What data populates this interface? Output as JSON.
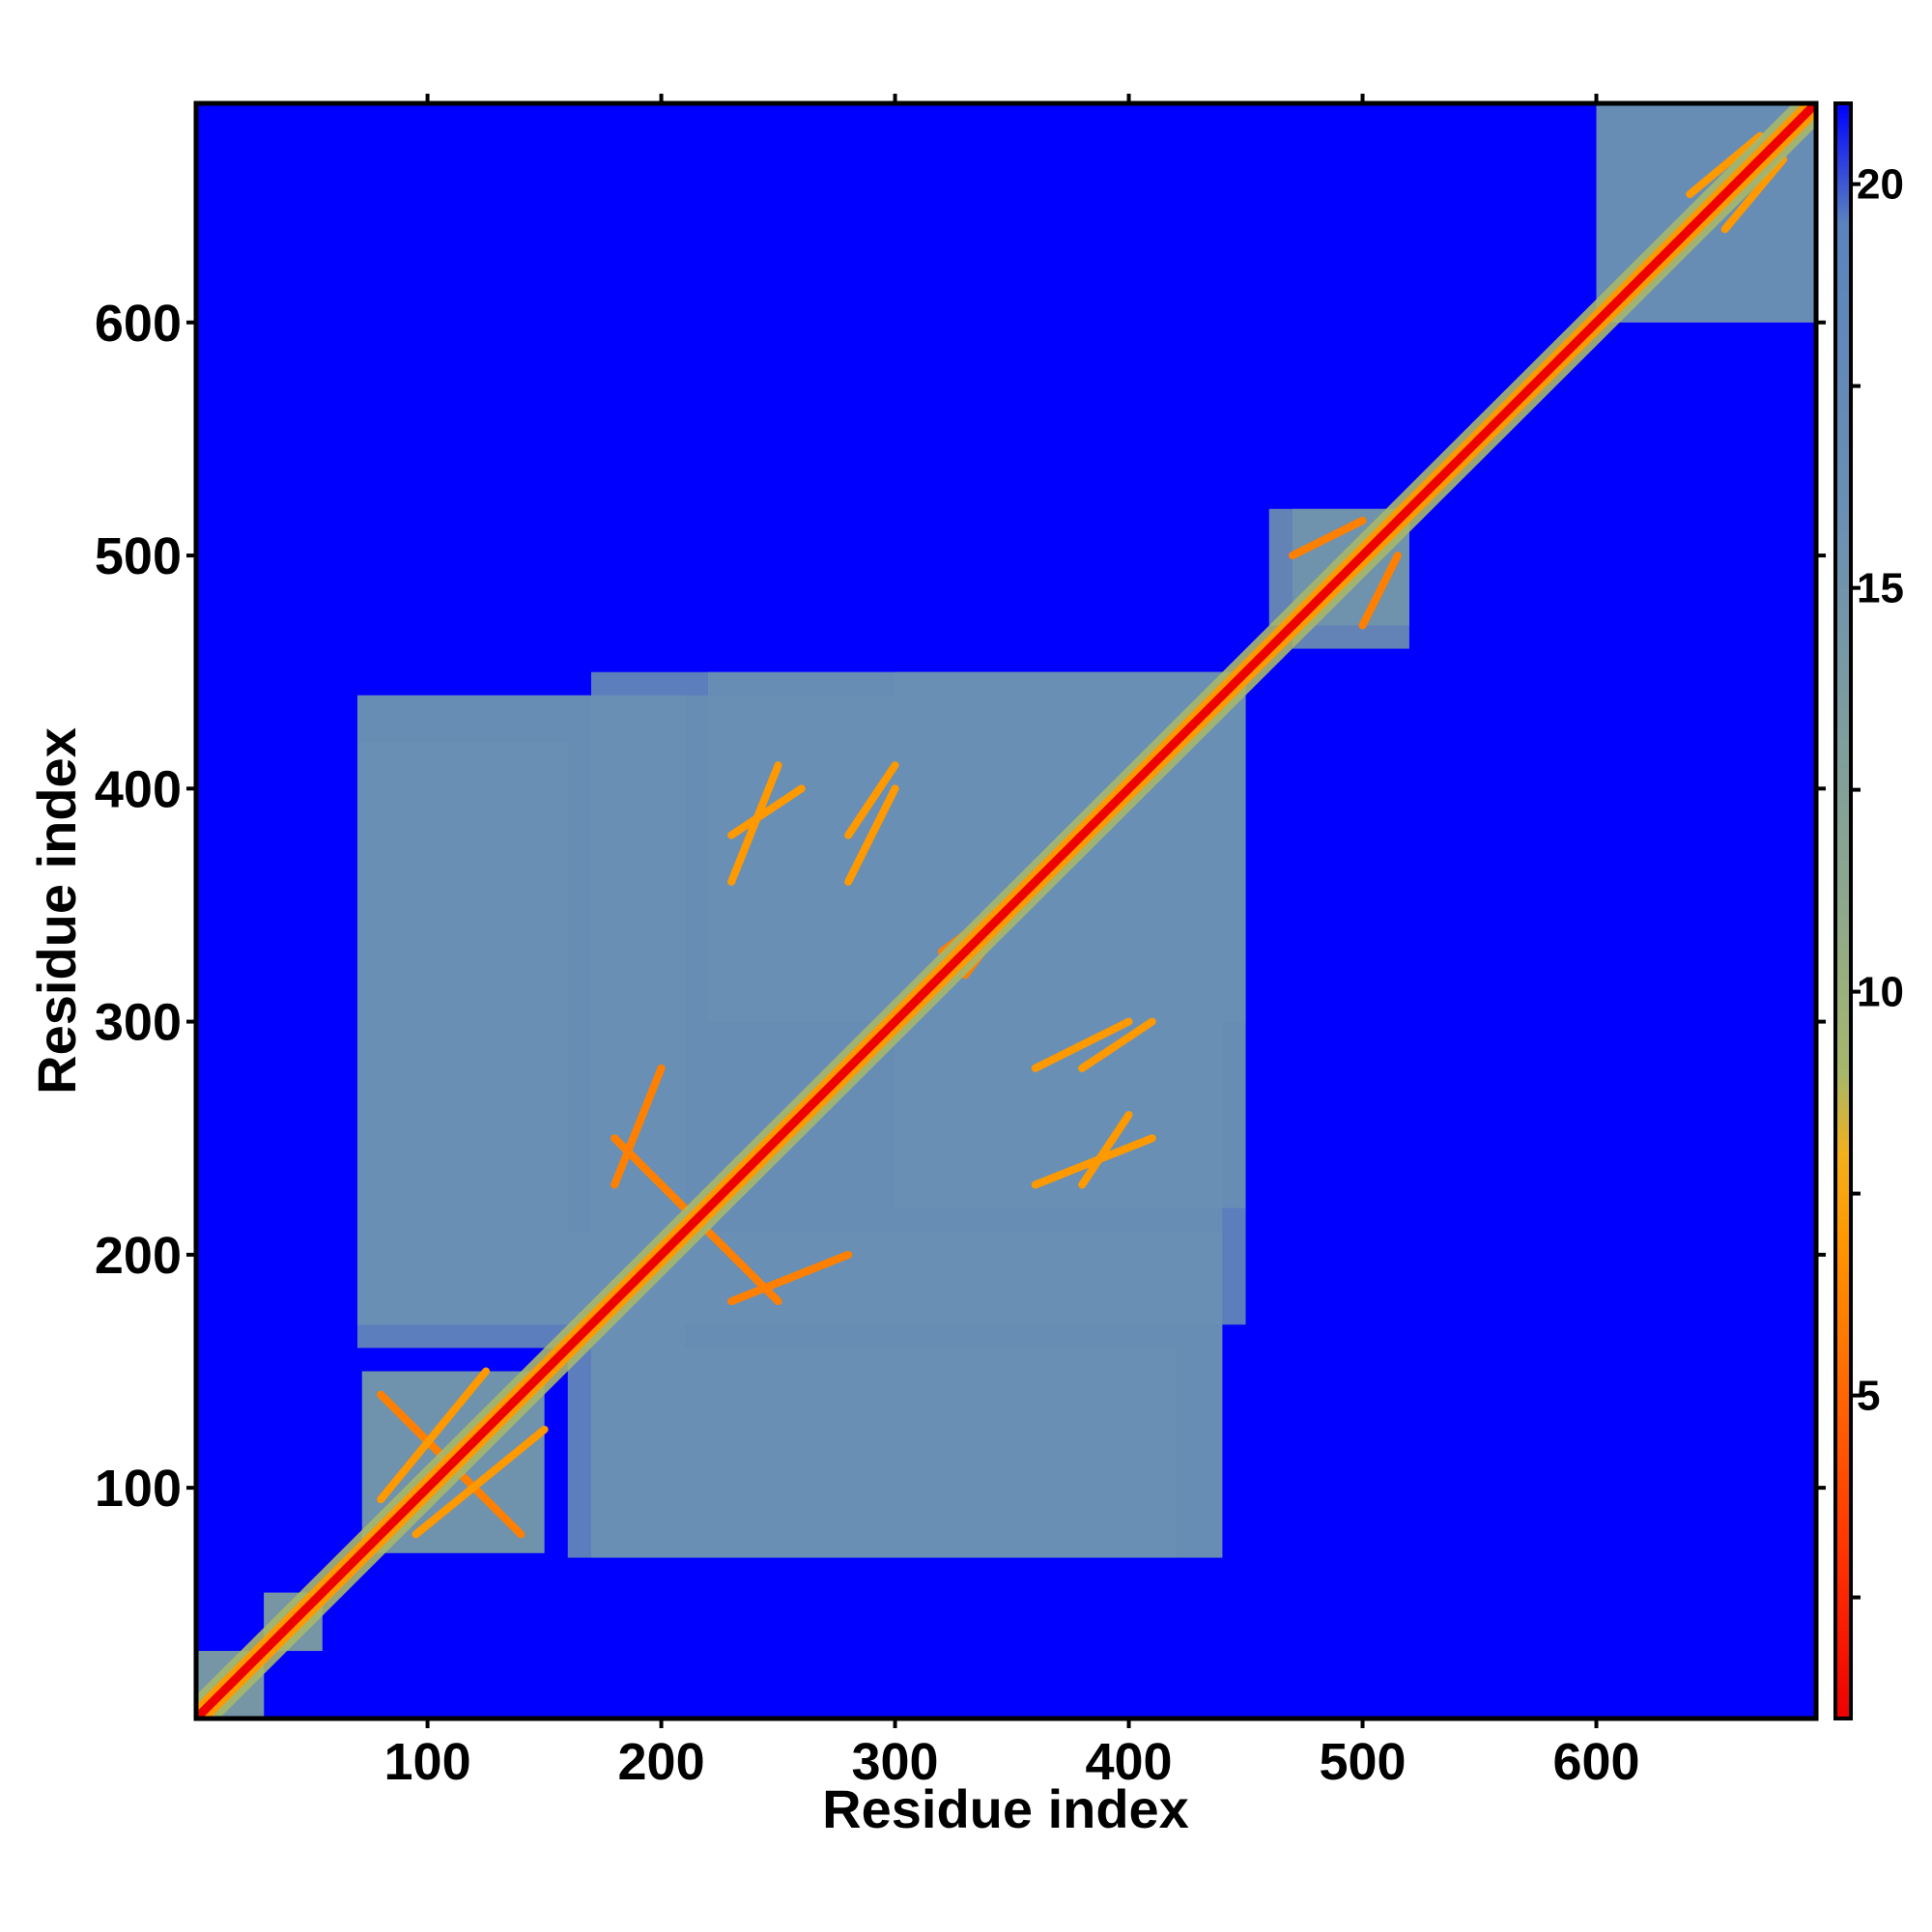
{
  "chart_data": {
    "type": "heatmap",
    "title": "",
    "xlabel": "Residue index",
    "ylabel": "Residue index",
    "xlim": [
      1,
      694
    ],
    "ylim": [
      1,
      694
    ],
    "x_ticks": [
      100,
      200,
      300,
      400,
      500,
      600
    ],
    "y_ticks": [
      100,
      200,
      300,
      400,
      500,
      600
    ],
    "colorbar": {
      "ticks": [
        5,
        10,
        15,
        20
      ],
      "range": [
        1,
        21
      ],
      "stops": [
        {
          "v": 1.0,
          "color": "#ee0000"
        },
        {
          "v": 3.0,
          "color": "#ff3300"
        },
        {
          "v": 5.0,
          "color": "#ff6600"
        },
        {
          "v": 7.0,
          "color": "#ff9900"
        },
        {
          "v": 8.0,
          "color": "#f2b01c"
        },
        {
          "v": 9.0,
          "color": "#a6b76a"
        },
        {
          "v": 11.0,
          "color": "#8ea88c"
        },
        {
          "v": 16.0,
          "color": "#6a8fb4"
        },
        {
          "v": 19.5,
          "color": "#5a84bd"
        },
        {
          "v": 21.0,
          "color": "#0000ff"
        }
      ]
    },
    "background_color": "#0000ff",
    "diagonal_color": "#ee0000",
    "contact_regions": [
      {
        "x": [
          72,
          150
        ],
        "y": [
          72,
          150
        ],
        "value": 15
      },
      {
        "x": [
          70,
          450
        ],
        "y": [
          170,
          440
        ],
        "value": 16
      },
      {
        "x": [
          160,
          440
        ],
        "y": [
          70,
          210
        ],
        "value": 16
      },
      {
        "x": [
          70,
          160
        ],
        "y": [
          170,
          420
        ],
        "value": 16
      },
      {
        "x": [
          220,
          450
        ],
        "y": [
          300,
          450
        ],
        "value": 16
      },
      {
        "x": [
          460,
          520
        ],
        "y": [
          470,
          520
        ],
        "value": 15
      },
      {
        "x": [
          600,
          694
        ],
        "y": [
          600,
          694
        ],
        "value": 16
      },
      {
        "x": [
          1,
          30
        ],
        "y": [
          1,
          30
        ],
        "value": 14
      },
      {
        "x": [
          30,
          55
        ],
        "y": [
          30,
          55
        ],
        "value": 14
      }
    ],
    "contact_arcs": [
      {
        "x": [
          80,
          130
        ],
        "y": [
          140,
          90
        ],
        "value": 6
      },
      {
        "x": [
          95,
          150
        ],
        "y": [
          80,
          125
        ],
        "value": 7
      },
      {
        "x": [
          180,
          210
        ],
        "y": [
          250,
          220
        ],
        "value": 6
      },
      {
        "x": [
          230,
          260
        ],
        "y": [
          380,
          400
        ],
        "value": 7
      },
      {
        "x": [
          280,
          300
        ],
        "y": [
          380,
          410
        ],
        "value": 7
      },
      {
        "x": [
          320,
          360
        ],
        "y": [
          330,
          360
        ],
        "value": 6
      },
      {
        "x": [
          360,
          400
        ],
        "y": [
          280,
          300
        ],
        "value": 7
      },
      {
        "x": [
          230,
          280
        ],
        "y": [
          180,
          200
        ],
        "value": 6
      },
      {
        "x": [
          360,
          410
        ],
        "y": [
          230,
          250
        ],
        "value": 7
      },
      {
        "x": [
          470,
          500
        ],
        "y": [
          500,
          515
        ],
        "value": 6
      },
      {
        "x": [
          640,
          670
        ],
        "y": [
          655,
          680
        ],
        "value": 7
      }
    ]
  }
}
